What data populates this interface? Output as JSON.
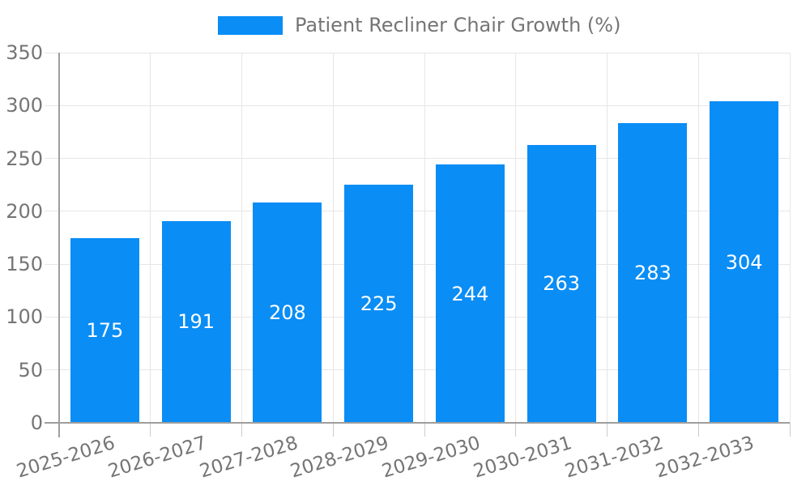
{
  "chart_data": {
    "type": "bar",
    "title": "",
    "legend_label": "Patient Recliner Chair Growth (%)",
    "legend_position": "top",
    "categories": [
      "2025-2026",
      "2026-2027",
      "2027-2028",
      "2028-2029",
      "2029-2030",
      "2030-2031",
      "2031-2032",
      "2032-2033"
    ],
    "values": [
      175,
      191,
      208,
      225,
      244,
      263,
      283,
      304
    ],
    "xlabel": "",
    "ylabel": "",
    "ylim": [
      0,
      350
    ],
    "yticks": [
      0,
      50,
      100,
      150,
      200,
      250,
      300,
      350
    ],
    "grid": true,
    "bar_labels_inside": true,
    "x_label_rotation_deg": -17,
    "colors": {
      "bar": "#0a8df5",
      "bar_label": "#ffffff",
      "axis_text": "#757575",
      "gridline": "#e6e6e6",
      "tick": "#cccccc",
      "axis_line": "#9e9e9e",
      "background": "#ffffff"
    }
  }
}
